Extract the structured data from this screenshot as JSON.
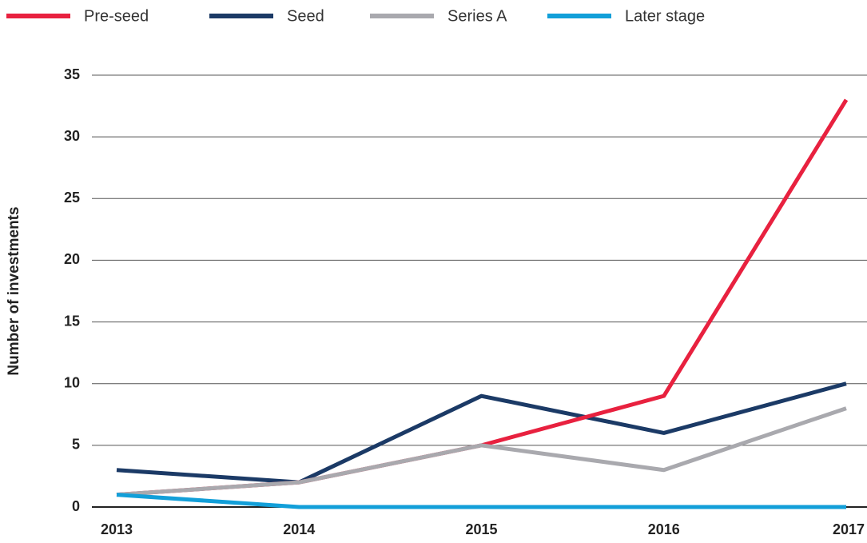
{
  "chart_data": {
    "type": "line",
    "y_label": "Number of investments",
    "categories": [
      "2013",
      "2014",
      "2015",
      "2016",
      "2017"
    ],
    "series": [
      {
        "name": "Pre-seed",
        "color": "#e8213f",
        "values": [
          1,
          2,
          5,
          9,
          33
        ]
      },
      {
        "name": "Seed",
        "color": "#1b3a66",
        "values": [
          3,
          2,
          9,
          6,
          10
        ]
      },
      {
        "name": "Series A",
        "color": "#a9a9ae",
        "values": [
          1,
          2,
          5,
          3,
          8
        ]
      },
      {
        "name": "Later stage",
        "color": "#129fd9",
        "values": [
          1,
          0,
          0,
          0,
          0
        ]
      }
    ],
    "ylim": [
      0,
      35
    ],
    "yticks": [
      0,
      5,
      10,
      15,
      20,
      25,
      30,
      35
    ],
    "grid": true,
    "legend": "top"
  }
}
